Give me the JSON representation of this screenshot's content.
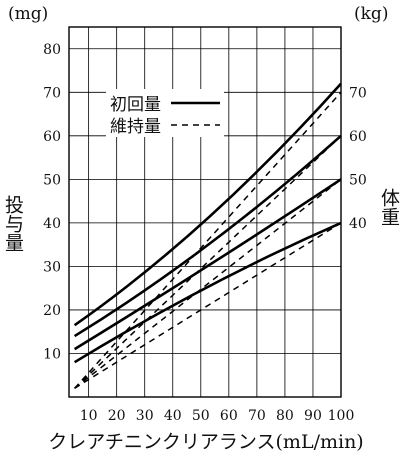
{
  "chart_data": {
    "type": "line",
    "title": "",
    "xlabel": "クレアチニンクリアランス(mL/min)",
    "ylabel_left": "投与量",
    "ylabel_right": "体重",
    "unit_left": "(mg)",
    "unit_right": "(kg)",
    "xlim": [
      3,
      100
    ],
    "ylim": [
      0,
      85
    ],
    "x_ticks": [
      10,
      20,
      30,
      40,
      50,
      60,
      70,
      80,
      90,
      100
    ],
    "y_ticks": [
      10,
      20,
      30,
      40,
      50,
      60,
      70,
      80
    ],
    "right_ticks": [
      {
        "label": "40",
        "value": 40
      },
      {
        "label": "50",
        "value": 50
      },
      {
        "label": "60",
        "value": 60
      },
      {
        "label": "70",
        "value": 70
      }
    ],
    "grid": true,
    "legend": {
      "position": "top-center",
      "entries": [
        {
          "label": "初回量",
          "style": "solid"
        },
        {
          "label": "維持量",
          "style": "dashed"
        }
      ]
    },
    "series": [
      {
        "weight": 40,
        "style": "solid",
        "x": [
          5,
          40,
          100
        ],
        "y": [
          8,
          21,
          40
        ]
      },
      {
        "weight": 50,
        "style": "solid",
        "x": [
          5,
          40,
          100
        ],
        "y": [
          11,
          25,
          50
        ]
      },
      {
        "weight": 60,
        "style": "solid",
        "x": [
          5,
          40,
          100
        ],
        "y": [
          14,
          29,
          60
        ]
      },
      {
        "weight": 70,
        "style": "solid",
        "x": [
          5,
          40,
          100
        ],
        "y": [
          16.5,
          34,
          72
        ]
      },
      {
        "weight": 40,
        "style": "dashed",
        "x": [
          5,
          100
        ],
        "y": [
          2,
          40
        ]
      },
      {
        "weight": 50,
        "style": "dashed",
        "x": [
          5,
          100
        ],
        "y": [
          2,
          50
        ]
      },
      {
        "weight": 60,
        "style": "dashed",
        "x": [
          5,
          100
        ],
        "y": [
          2,
          60
        ]
      },
      {
        "weight": 70,
        "style": "dashed",
        "x": [
          5,
          100
        ],
        "y": [
          2,
          70
        ]
      }
    ]
  }
}
